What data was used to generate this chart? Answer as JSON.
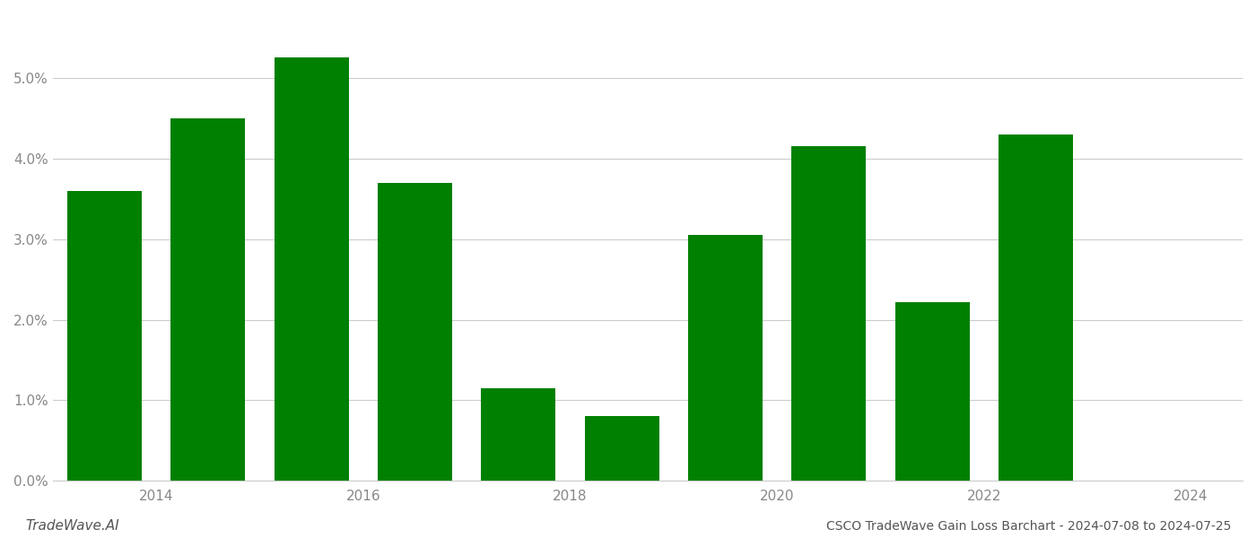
{
  "years": [
    2013.5,
    2014.5,
    2015.5,
    2016.5,
    2017.5,
    2018.5,
    2019.5,
    2020.5,
    2021.5,
    2022.5
  ],
  "values": [
    0.036,
    0.045,
    0.0525,
    0.037,
    0.0115,
    0.008,
    0.0305,
    0.0415,
    0.0222,
    0.043
  ],
  "bar_color": "#008000",
  "title": "CSCO TradeWave Gain Loss Barchart - 2024-07-08 to 2024-07-25",
  "watermark": "TradeWave.AI",
  "ylim": [
    0,
    0.058
  ],
  "yticks": [
    0.0,
    0.01,
    0.02,
    0.03,
    0.04,
    0.05
  ],
  "xtick_positions": [
    2014,
    2016,
    2018,
    2020,
    2022,
    2024
  ],
  "xtick_labels": [
    "2014",
    "2016",
    "2018",
    "2020",
    "2022",
    "2024"
  ],
  "xlim": [
    2013.0,
    2024.5
  ],
  "background_color": "#ffffff",
  "grid_color": "#cccccc",
  "bar_width": 0.72
}
